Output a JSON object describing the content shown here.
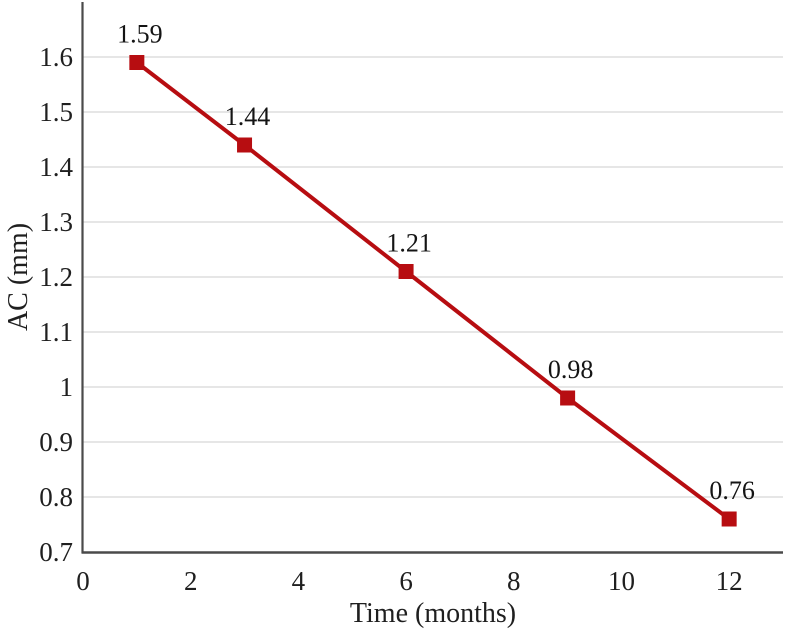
{
  "chart_data": {
    "type": "line",
    "title": "",
    "xlabel": "Time (months)",
    "ylabel": "AC (mm)",
    "x": [
      1,
      3,
      6,
      9,
      12
    ],
    "values": [
      1.59,
      1.44,
      1.21,
      0.98,
      0.76
    ],
    "point_labels": [
      "1.59",
      "1.44",
      "1.21",
      "0.98",
      "0.76"
    ],
    "x_ticks": [
      0,
      2,
      4,
      6,
      8,
      10,
      12
    ],
    "x_tick_labels": [
      "0",
      "2",
      "4",
      "6",
      "8",
      "10",
      "12"
    ],
    "y_ticks": [
      0.7,
      0.8,
      0.9,
      1,
      1.1,
      1.2,
      1.3,
      1.4,
      1.5,
      1.6
    ],
    "y_tick_labels": [
      "0.7",
      "0.8",
      "0.9",
      "1",
      "1.1",
      "1.2",
      "1.3",
      "1.4",
      "1.5",
      "1.6"
    ],
    "xlim": [
      0,
      13
    ],
    "ylim": [
      0.7,
      1.7
    ],
    "grid": true,
    "legend_position": "none",
    "marker": "square",
    "colors": {
      "series": "#b70d11",
      "grid": "#e3e3e3",
      "axis": "#4a4a4a",
      "text": "#1f1f1f",
      "background": "#ffffff"
    }
  }
}
